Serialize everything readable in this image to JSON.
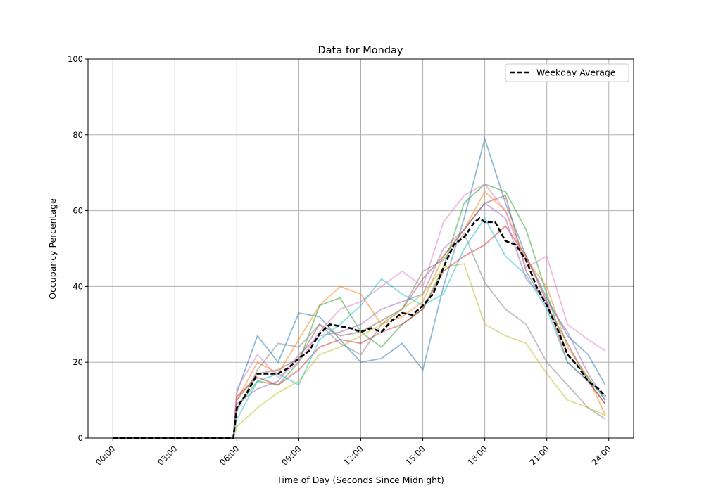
{
  "chart_data": {
    "type": "line",
    "title": "Data for Monday",
    "xlabel": "Time of Day (Seconds Since Midnight)",
    "ylabel": "Occupancy Percentage",
    "xlim_hours": [
      -1.2,
      25.2
    ],
    "ylim": [
      0,
      100
    ],
    "grid": true,
    "legend_placement": "top-right",
    "x_tick_labels": [
      "00:00",
      "03:00",
      "06:00",
      "09:00",
      "12:00",
      "15:00",
      "18:00",
      "21:00",
      "24:00"
    ],
    "x_tick_hours": [
      0,
      3,
      6,
      9,
      12,
      15,
      18,
      21,
      24
    ],
    "y_ticks": [
      0,
      20,
      40,
      60,
      80,
      100
    ],
    "average": {
      "name": "Weekday Average",
      "color": "#000000",
      "x_hours": [
        0,
        5.83,
        6,
        6.5,
        7,
        7.5,
        8,
        8.5,
        9,
        9.5,
        10,
        10.5,
        11,
        11.5,
        12,
        12.5,
        13,
        13.5,
        14,
        14.5,
        15,
        15.5,
        16,
        16.5,
        17,
        17.5,
        17.75,
        18,
        18.5,
        19,
        19.5,
        20,
        20.5,
        21,
        21.5,
        22,
        22.5,
        23,
        23.5,
        23.83
      ],
      "values": [
        0,
        0,
        8,
        12,
        17,
        17,
        17,
        18.5,
        21,
        23,
        27.5,
        30,
        29.5,
        29,
        28,
        29,
        28,
        31,
        33,
        32.5,
        35,
        38,
        45,
        51,
        53,
        57,
        58,
        57,
        57,
        52,
        51,
        47,
        40,
        35,
        29,
        22,
        19,
        15,
        13,
        11
      ]
    },
    "series_x_hours": [
      0,
      5.83,
      6,
      7,
      8,
      9,
      10,
      11,
      12,
      13,
      14,
      15,
      16,
      17,
      18,
      19,
      20,
      21,
      22,
      23,
      23.83
    ],
    "series": [
      {
        "color": "#1f77b4",
        "values": [
          0,
          0,
          12,
          27,
          20,
          33,
          32,
          26,
          20,
          21,
          25,
          18,
          40,
          58,
          79,
          62,
          48,
          37,
          27,
          22,
          14
        ]
      },
      {
        "color": "#ff7f0e",
        "values": [
          0,
          0,
          10,
          20,
          17,
          26,
          35,
          40,
          38,
          30,
          32,
          36,
          48,
          55,
          65,
          60,
          47,
          40,
          24,
          16,
          6
        ]
      },
      {
        "color": "#2ca02c",
        "values": [
          0,
          0,
          8,
          15,
          14,
          20,
          35,
          37,
          28,
          24,
          30,
          34,
          45,
          62,
          67,
          65,
          55,
          38,
          22,
          16,
          10
        ]
      },
      {
        "color": "#d62728",
        "values": [
          0,
          0,
          11,
          16,
          14,
          18,
          24,
          26,
          25,
          28,
          30,
          34,
          44,
          48,
          51,
          56,
          48,
          36,
          20,
          15,
          9
        ]
      },
      {
        "color": "#9467bd",
        "values": [
          0,
          0,
          9,
          13,
          15,
          22,
          27,
          28,
          30,
          34,
          36,
          38,
          50,
          55,
          62,
          58,
          42,
          36,
          28,
          17,
          10
        ]
      },
      {
        "color": "#8c564b",
        "values": [
          0,
          0,
          10,
          17,
          18,
          21,
          30,
          27,
          28,
          31,
          34,
          42,
          48,
          55,
          62,
          64,
          44,
          35,
          25,
          15,
          9
        ]
      },
      {
        "color": "#e377c2",
        "values": [
          0,
          0,
          13,
          22,
          16,
          20,
          28,
          34,
          36,
          40,
          44,
          40,
          57,
          64,
          67,
          60,
          45,
          48,
          30,
          26,
          23
        ]
      },
      {
        "color": "#7f7f7f",
        "values": [
          0,
          0,
          7,
          18,
          25,
          24,
          30,
          25,
          22,
          30,
          34,
          44,
          47,
          54,
          41,
          34,
          30,
          20,
          14,
          8,
          5
        ]
      },
      {
        "color": "#bcbd22",
        "values": [
          0,
          0,
          3,
          8,
          12,
          15,
          22,
          24,
          27,
          30,
          34,
          38,
          45,
          46,
          30,
          27,
          25,
          17,
          10,
          8,
          6
        ]
      },
      {
        "color": "#17becf",
        "values": [
          0,
          0,
          5,
          15,
          17,
          14,
          26,
          30,
          35,
          42,
          38,
          35,
          38,
          50,
          58,
          48,
          43,
          34,
          20,
          15,
          11
        ]
      }
    ]
  }
}
